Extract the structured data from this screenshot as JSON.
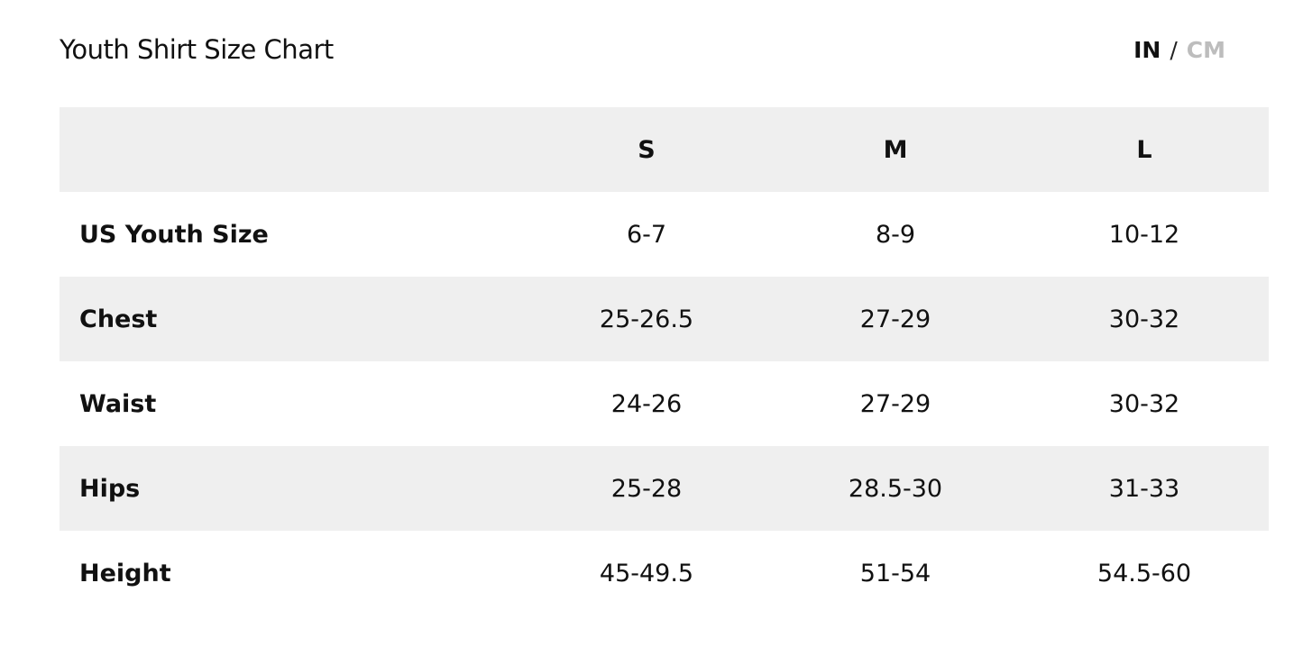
{
  "title": "Youth Shirt Size Chart",
  "units": {
    "active": "IN",
    "separator": "/",
    "inactive": "CM"
  },
  "table": {
    "columns": [
      "",
      "S",
      "M",
      "L"
    ],
    "rows": [
      {
        "label": "US Youth Size",
        "values": [
          "6-7",
          "8-9",
          "10-12"
        ]
      },
      {
        "label": "Chest",
        "values": [
          "25-26.5",
          "27-29",
          "30-32"
        ]
      },
      {
        "label": "Waist",
        "values": [
          "24-26",
          "27-29",
          "30-32"
        ]
      },
      {
        "label": "Hips",
        "values": [
          "25-28",
          "28.5-30",
          "31-33"
        ]
      },
      {
        "label": "Height",
        "values": [
          "45-49.5",
          "51-54",
          "54.5-60"
        ]
      }
    ]
  }
}
